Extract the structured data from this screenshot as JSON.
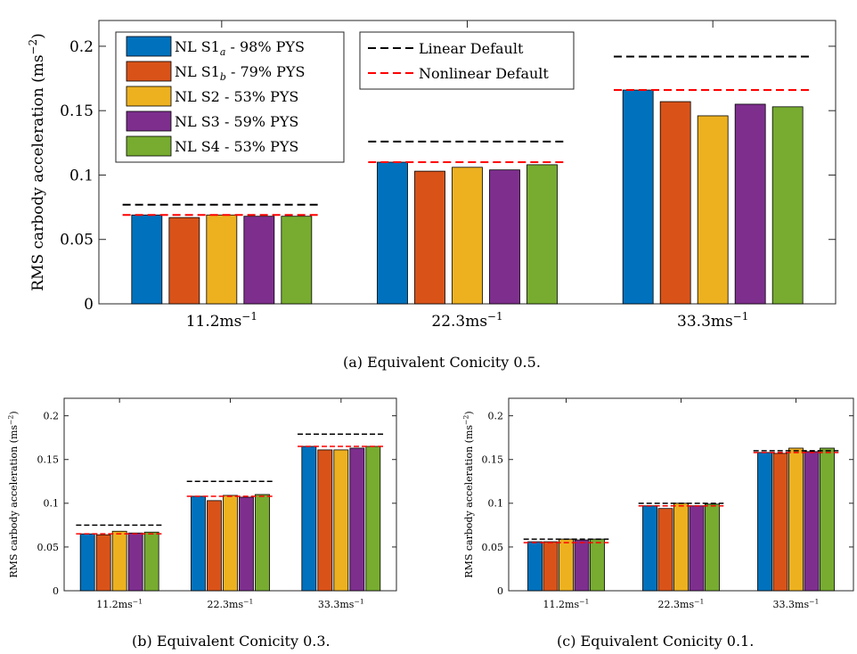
{
  "colors": {
    "series": [
      "#0072BD",
      "#D95319",
      "#EDB120",
      "#7E2F8E",
      "#77AC30"
    ],
    "linear_default": "#000000",
    "nonlinear_default": "#FF0000"
  },
  "legend": {
    "series": [
      {
        "prefix": "NL S1",
        "sub": "a",
        "suffix": " - 98% PYS"
      },
      {
        "prefix": "NL S1",
        "sub": "b",
        "suffix": " - 79% PYS"
      },
      {
        "prefix": "NL S2",
        "sub": "",
        "suffix": " - 53% PYS"
      },
      {
        "prefix": "NL S3",
        "sub": "",
        "suffix": " - 59% PYS"
      },
      {
        "prefix": "NL S4",
        "sub": "",
        "suffix": " - 53% PYS"
      }
    ],
    "lines": [
      "Linear Default",
      "Nonlinear Default"
    ]
  },
  "chart_data": [
    {
      "type": "bar",
      "caption": "(a) Equivalent Conicity 0.5.",
      "ylabel": "RMS carbody acceleration (ms",
      "ylabel_sup": "−2",
      "ylabel_close": ")",
      "ylim": [
        0,
        0.22
      ],
      "yticks": [
        0,
        0.05,
        0.1,
        0.15,
        0.2
      ],
      "ytick_labels": [
        "0",
        "0.05",
        "0.1",
        "0.15",
        "0.2"
      ],
      "categories": [
        {
          "base": "11.2ms",
          "sup": "−1"
        },
        {
          "base": "22.3ms",
          "sup": "−1"
        },
        {
          "base": "33.3ms",
          "sup": "−1"
        }
      ],
      "series": [
        {
          "name": "NL S1a - 98% PYS",
          "values": [
            0.069,
            0.11,
            0.166
          ]
        },
        {
          "name": "NL S1b - 79% PYS",
          "values": [
            0.067,
            0.103,
            0.157
          ]
        },
        {
          "name": "NL S2 - 53% PYS",
          "values": [
            0.069,
            0.106,
            0.146
          ]
        },
        {
          "name": "NL S3 - 59% PYS",
          "values": [
            0.068,
            0.104,
            0.155
          ]
        },
        {
          "name": "NL S4 - 53% PYS",
          "values": [
            0.068,
            0.108,
            0.153
          ]
        }
      ],
      "linear_default": [
        0.077,
        0.126,
        0.192
      ],
      "nonlinear_default": [
        0.069,
        0.11,
        0.166
      ],
      "legend": "top-left"
    },
    {
      "type": "bar",
      "caption": "(b) Equivalent Conicity 0.3.",
      "ylabel": "RMS carbody acceleration (ms",
      "ylabel_sup": "−2",
      "ylabel_close": ")",
      "ylim": [
        0,
        0.22
      ],
      "yticks": [
        0,
        0.05,
        0.1,
        0.15,
        0.2
      ],
      "ytick_labels": [
        "0",
        "0.05",
        "0.1",
        "0.15",
        "0.2"
      ],
      "categories": [
        {
          "base": "11.2ms",
          "sup": "−1"
        },
        {
          "base": "22.3ms",
          "sup": "−1"
        },
        {
          "base": "33.3ms",
          "sup": "−1"
        }
      ],
      "series": [
        {
          "name": "NL S1a - 98% PYS",
          "values": [
            0.065,
            0.108,
            0.165
          ]
        },
        {
          "name": "NL S1b - 79% PYS",
          "values": [
            0.064,
            0.103,
            0.161
          ]
        },
        {
          "name": "NL S2 - 53% PYS",
          "values": [
            0.068,
            0.109,
            0.161
          ]
        },
        {
          "name": "NL S3 - 59% PYS",
          "values": [
            0.066,
            0.107,
            0.163
          ]
        },
        {
          "name": "NL S4 - 53% PYS",
          "values": [
            0.067,
            0.11,
            0.165
          ]
        }
      ],
      "linear_default": [
        0.075,
        0.125,
        0.179
      ],
      "nonlinear_default": [
        0.065,
        0.108,
        0.165
      ]
    },
    {
      "type": "bar",
      "caption": "(c) Equivalent Conicity 0.1.",
      "ylabel": "RMS carbody acceleration (ms",
      "ylabel_sup": "−2",
      "ylabel_close": ")",
      "ylim": [
        0,
        0.22
      ],
      "yticks": [
        0,
        0.05,
        0.1,
        0.15,
        0.2
      ],
      "ytick_labels": [
        "0",
        "0.05",
        "0.1",
        "0.15",
        "0.2"
      ],
      "categories": [
        {
          "base": "11.2ms",
          "sup": "−1"
        },
        {
          "base": "22.3ms",
          "sup": "−1"
        },
        {
          "base": "33.3ms",
          "sup": "−1"
        }
      ],
      "series": [
        {
          "name": "NL S1a - 98% PYS",
          "values": [
            0.056,
            0.097,
            0.158
          ]
        },
        {
          "name": "NL S1b - 79% PYS",
          "values": [
            0.056,
            0.094,
            0.157
          ]
        },
        {
          "name": "NL S2 - 53% PYS",
          "values": [
            0.059,
            0.1,
            0.163
          ]
        },
        {
          "name": "NL S3 - 59% PYS",
          "values": [
            0.058,
            0.097,
            0.159
          ]
        },
        {
          "name": "NL S4 - 53% PYS",
          "values": [
            0.059,
            0.099,
            0.163
          ]
        }
      ],
      "linear_default": [
        0.059,
        0.1,
        0.16
      ],
      "nonlinear_default": [
        0.055,
        0.097,
        0.158
      ]
    }
  ]
}
